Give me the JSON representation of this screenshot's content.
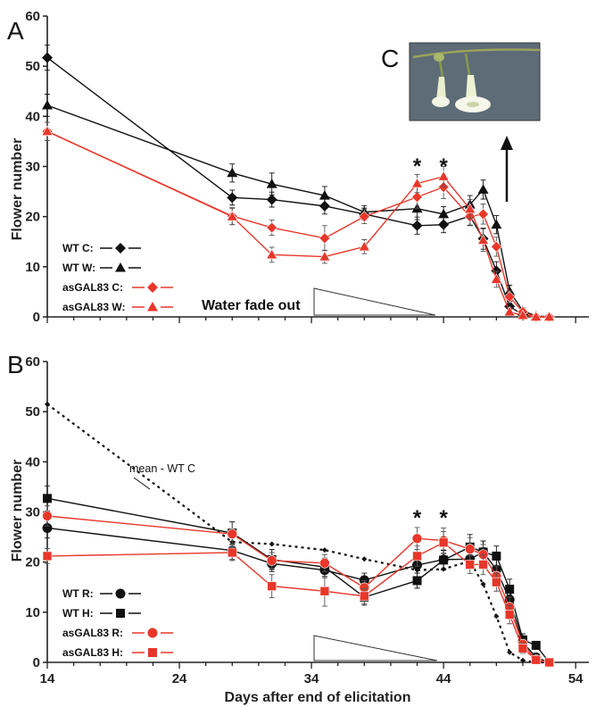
{
  "chart_data": [
    {
      "panel": "A",
      "type": "line",
      "xlabel": "",
      "ylabel": "Flower number",
      "xlim": [
        14,
        55
      ],
      "ylim": [
        0,
        60
      ],
      "yticks": [
        "0",
        "10",
        "20",
        "30",
        "40",
        "50",
        "60"
      ],
      "series": [
        {
          "name": "WT C:",
          "marker": "diamond",
          "color": "#111111",
          "x": [
            14,
            28,
            31,
            35,
            38,
            42,
            44,
            46,
            47,
            48,
            49,
            50,
            51,
            52
          ],
          "y": [
            51.7,
            23.8,
            23.4,
            22.1,
            20.5,
            18.2,
            18.4,
            20.1,
            15.6,
            9.2,
            2.1,
            0.4,
            0,
            0
          ],
          "err": [
            2.5,
            1.5,
            1.5,
            1.6,
            1.2,
            1.7,
            1.6,
            1.8,
            2.1,
            1.8,
            1.0,
            0.5,
            0,
            0
          ]
        },
        {
          "name": "WT W:",
          "marker": "triangle",
          "color": "#111111",
          "x": [
            14,
            28,
            31,
            35,
            38,
            42,
            44,
            46,
            47,
            48,
            49,
            50,
            51,
            52
          ],
          "y": [
            42.2,
            28.7,
            26.5,
            24.2,
            20.9,
            21.6,
            20.5,
            22.4,
            25.4,
            18.4,
            5.1,
            1.2,
            0.2,
            0
          ],
          "err": [
            2.2,
            1.8,
            2.2,
            1.8,
            1.3,
            2.2,
            1.5,
            1.8,
            1.9,
            1.8,
            1.2,
            0.6,
            0.3,
            0
          ]
        },
        {
          "name": "asGAL83 C:",
          "marker": "diamond",
          "color": "#e8372a",
          "x": [
            14,
            28,
            31,
            35,
            38,
            42,
            44,
            46,
            47,
            48,
            49,
            50,
            51,
            52
          ],
          "y": [
            37.0,
            20.1,
            17.8,
            15.7,
            20.0,
            23.9,
            25.9,
            20.0,
            20.5,
            14.0,
            4.0,
            1.0,
            0,
            0
          ],
          "err": [
            1.8,
            1.7,
            1.5,
            2.5,
            1.4,
            2.2,
            2.3,
            1.8,
            2.0,
            1.9,
            1.2,
            0.6,
            0,
            0
          ]
        },
        {
          "name": "asGAL83 W:",
          "marker": "triangle",
          "color": "#e8372a",
          "x": [
            14,
            28,
            31,
            35,
            38,
            42,
            44,
            46,
            47,
            48,
            49,
            50,
            51,
            52
          ],
          "y": [
            37.0,
            20.0,
            12.4,
            12.0,
            14.0,
            26.6,
            28.0,
            21.5,
            15.3,
            7.5,
            1.0,
            0.3,
            0,
            0
          ],
          "err": [
            1.8,
            1.6,
            1.5,
            1.3,
            1.4,
            1.8,
            2.0,
            1.9,
            2.2,
            1.6,
            0.8,
            0.4,
            0,
            0
          ]
        }
      ],
      "significance_days": [
        42,
        44
      ],
      "significance_marker": "*",
      "annotation": "Water fade out",
      "inset": {
        "label": "C",
        "arrow": "up"
      }
    },
    {
      "panel": "B",
      "type": "line",
      "xlabel": "Days after end of elicitation",
      "ylabel": "Flower number",
      "xlim": [
        14,
        55
      ],
      "ylim": [
        0,
        60
      ],
      "xticks": [
        "14",
        "24",
        "34",
        "44",
        "54"
      ],
      "yticks": [
        "0",
        "10",
        "20",
        "30",
        "40",
        "50",
        "60"
      ],
      "series": [
        {
          "name": "mean - WT C",
          "marker": "small-diamond",
          "color": "#111111",
          "linestyle": "dotted",
          "x": [
            14,
            28,
            31,
            35,
            38,
            42,
            44,
            46,
            47,
            48,
            49,
            50,
            51,
            52
          ],
          "y": [
            51.5,
            24.0,
            23.6,
            22.4,
            20.6,
            18.4,
            18.6,
            20.2,
            15.6,
            9.2,
            2.0,
            0.4,
            0,
            0
          ]
        },
        {
          "name": "WT R:",
          "marker": "circle",
          "color": "#111111",
          "x": [
            14,
            28,
            31,
            35,
            38,
            42,
            44,
            46,
            47,
            48,
            49,
            50,
            51,
            52
          ],
          "y": [
            26.8,
            22.3,
            19.7,
            18.4,
            16.4,
            19.4,
            20.5,
            20.6,
            22.0,
            18.5,
            12.5,
            4.0,
            1.0,
            0
          ],
          "err": [
            2.0,
            1.8,
            1.6,
            1.5,
            1.4,
            1.6,
            1.8,
            1.9,
            2.2,
            2.0,
            2.2,
            1.0,
            0.5,
            0
          ]
        },
        {
          "name": "WT H:",
          "marker": "square",
          "color": "#111111",
          "x": [
            14,
            28,
            31,
            35,
            38,
            42,
            44,
            46,
            47,
            48,
            49,
            50,
            51,
            52
          ],
          "y": [
            32.7,
            25.8,
            20.5,
            19.0,
            13.0,
            16.3,
            20.4,
            23.0,
            22.0,
            21.2,
            14.6,
            4.5,
            3.4,
            0
          ],
          "err": [
            2.5,
            2.2,
            2.0,
            1.8,
            1.6,
            1.5,
            2.0,
            2.5,
            2.2,
            2.0,
            2.0,
            1.2,
            0.8,
            0
          ]
        },
        {
          "name": "asGAL83 R:",
          "marker": "circle",
          "color": "#e8372a",
          "x": [
            14,
            28,
            31,
            35,
            38,
            42,
            44,
            46,
            47,
            48,
            49,
            50,
            51,
            52
          ],
          "y": [
            29.2,
            25.6,
            20.3,
            19.8,
            14.9,
            24.7,
            24.3,
            22.6,
            21.5,
            17.2,
            11.0,
            3.6,
            0.5,
            0
          ],
          "err": [
            2.0,
            2.5,
            1.6,
            1.7,
            1.4,
            2.2,
            2.5,
            2.3,
            2.0,
            2.0,
            2.0,
            1.0,
            0.4,
            0
          ]
        },
        {
          "name": "asGAL83 H:",
          "marker": "square",
          "color": "#e8372a",
          "x": [
            14,
            28,
            31,
            35,
            38,
            42,
            44,
            46,
            47,
            48,
            49,
            50,
            51,
            52
          ],
          "y": [
            21.2,
            21.9,
            15.2,
            14.2,
            13.2,
            21.2,
            23.9,
            19.5,
            19.5,
            16.0,
            9.5,
            2.8,
            0.5,
            0
          ],
          "err": [
            1.5,
            1.6,
            2.3,
            3.0,
            1.5,
            2.0,
            2.2,
            1.8,
            2.0,
            1.8,
            1.8,
            1.0,
            0.4,
            0
          ]
        }
      ],
      "significance_days": [
        42,
        44
      ],
      "significance_marker": "*",
      "annotation": "mean - WT C"
    }
  ],
  "colors": {
    "wt": "#111111",
    "asGAL83": "#e8372a"
  }
}
